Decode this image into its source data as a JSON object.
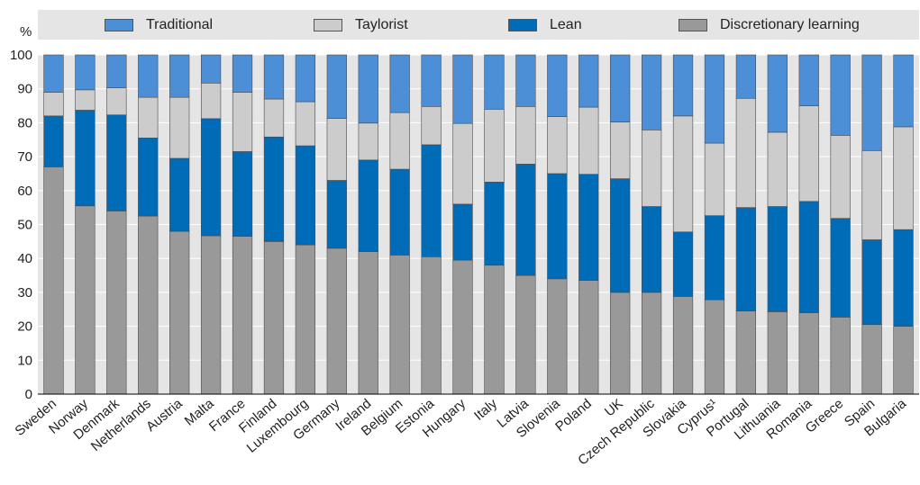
{
  "chart_data": {
    "type": "bar",
    "stacked": true,
    "unit_label": "%",
    "ylim": [
      0,
      100
    ],
    "yticks": [
      0,
      10,
      20,
      30,
      40,
      50,
      60,
      70,
      80,
      90,
      100
    ],
    "grid": "horizontal",
    "legend_position": "top",
    "categories": [
      "Sweden",
      "Norway",
      "Denmark",
      "Netherlands",
      "Austria",
      "Malta",
      "France",
      "Finland",
      "Luxembourg",
      "Germany",
      "Ireland",
      "Belgium",
      "Estonia",
      "Hungary",
      "Italy",
      "Latvia",
      "Slovenia",
      "Poland",
      "UK",
      "Czech Republic",
      "Slovakia",
      "Cyprus¹",
      "Portugal",
      "Lithuania",
      "Romania",
      "Greece",
      "Spain",
      "Bulgaria"
    ],
    "series": [
      {
        "name": "Discretionary learning",
        "color": "#999999",
        "values": [
          67,
          55.5,
          54,
          52.5,
          48,
          46.7,
          46.5,
          45,
          44,
          43,
          42,
          41,
          40.5,
          39.5,
          38,
          35,
          34,
          33.5,
          30,
          30,
          28.8,
          27.8,
          24.5,
          24.3,
          24,
          22.7,
          20.5,
          20
        ]
      },
      {
        "name": "Lean",
        "color": "#006bb7",
        "values": [
          15,
          28.2,
          28.3,
          23,
          21.5,
          34.5,
          25,
          30.8,
          29.2,
          20,
          27,
          25.3,
          33,
          16.5,
          24.5,
          32.8,
          31,
          31.3,
          33.5,
          25.3,
          19,
          24.8,
          30.5,
          31,
          32.8,
          29.1,
          25,
          28.5
        ]
      },
      {
        "name": "Taylorist",
        "color": "#cccccc",
        "values": [
          7,
          6,
          8,
          12,
          18,
          10.5,
          17.5,
          11.2,
          13,
          18.3,
          10.9,
          16.7,
          11.3,
          23.8,
          21.5,
          17,
          16.8,
          19.8,
          16.7,
          22.6,
          34.2,
          21.4,
          32.2,
          21.9,
          28.2,
          24.5,
          26.3,
          30.3
        ]
      },
      {
        "name": "Traditional",
        "color": "#4d8fd6",
        "values": [
          11,
          10.3,
          9.7,
          12.5,
          12.5,
          8.3,
          11,
          13,
          13.8,
          18.7,
          20.1,
          17,
          15.2,
          20.2,
          16,
          15.2,
          18.2,
          15.4,
          19.8,
          22.1,
          18,
          26,
          12.8,
          22.8,
          15,
          23.7,
          28.2,
          21.2
        ]
      }
    ]
  },
  "legend": [
    {
      "label": "Traditional",
      "color": "#4d8fd6"
    },
    {
      "label": "Taylorist",
      "color": "#cccccc"
    },
    {
      "label": "Lean",
      "color": "#006bb7"
    },
    {
      "label": "Discretionary learning",
      "color": "#999999"
    }
  ]
}
